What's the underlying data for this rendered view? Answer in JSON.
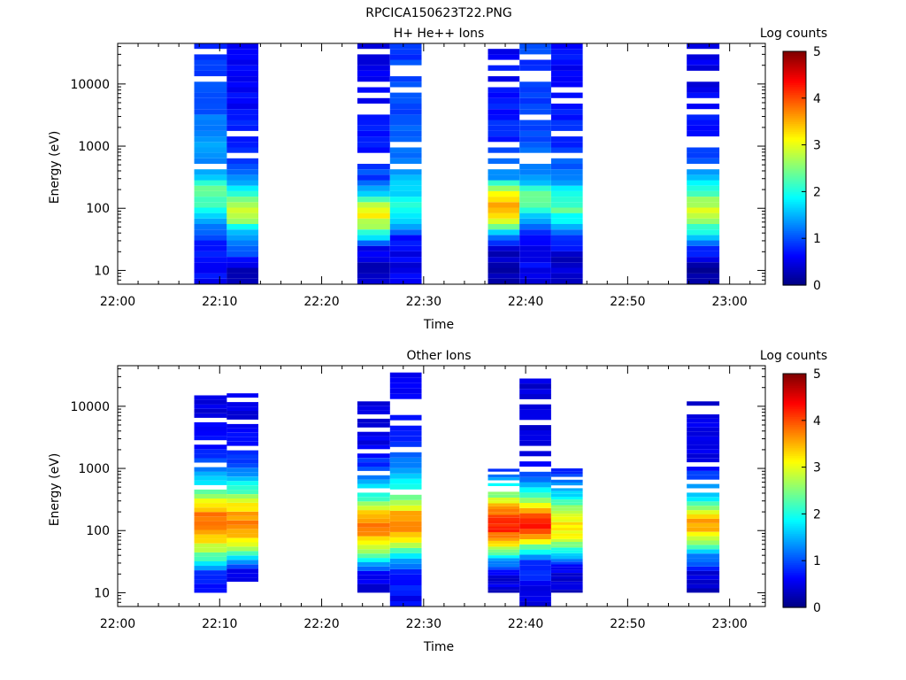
{
  "title": "RPCICA150623T22.PNG",
  "chart_data": [
    {
      "type": "heatmap",
      "title": "H+ He++ Ions",
      "xlabel": "Time",
      "ylabel": "Energy (eV)",
      "y_scale": "log",
      "ylim": [
        6,
        45000
      ],
      "x_ticks": [
        "22:00",
        "22:10",
        "22:20",
        "22:30",
        "22:40",
        "22:50",
        "23:00"
      ],
      "y_ticks": [
        "10",
        "100",
        "1000",
        "10000"
      ],
      "colorbar": {
        "label": "Log counts",
        "ticks": [
          "0",
          "1",
          "2",
          "3",
          "4",
          "5"
        ],
        "range": [
          0,
          5
        ]
      },
      "columns": [
        {
          "start": "22:07.5",
          "end": "22:10.7",
          "profile": [
            [
              6,
              0.6
            ],
            [
              10,
              0.6
            ],
            [
              18,
              0.9
            ],
            [
              25,
              0.8
            ],
            [
              40,
              1.2
            ],
            [
              60,
              1.5
            ],
            [
              100,
              2.0
            ],
            [
              150,
              2.3
            ],
            [
              200,
              2.5
            ],
            [
              300,
              1.8
            ],
            [
              500,
              1.3
            ],
            [
              1000,
              1.4
            ],
            [
              3000,
              1.1
            ],
            [
              10000,
              0.9
            ],
            [
              45000,
              0.8
            ]
          ]
        },
        {
          "start": "22:10.7",
          "end": "22:13.8",
          "profile": [
            [
              6,
              0.3
            ],
            [
              10,
              0.3
            ],
            [
              15,
              0.8
            ],
            [
              25,
              1.0
            ],
            [
              50,
              2.0
            ],
            [
              70,
              3.0
            ],
            [
              100,
              2.7
            ],
            [
              150,
              2.4
            ],
            [
              250,
              1.6
            ],
            [
              500,
              1.0
            ],
            [
              1000,
              0.8
            ],
            [
              10000,
              0.5
            ],
            [
              45000,
              0.5
            ]
          ]
        },
        {
          "start": "22:23.5",
          "end": "22:26.7",
          "profile": [
            [
              6,
              0.4
            ],
            [
              15,
              0.4
            ],
            [
              25,
              0.5
            ],
            [
              30,
              1.5
            ],
            [
              50,
              2.6
            ],
            [
              80,
              3.3
            ],
            [
              100,
              3.0
            ],
            [
              150,
              2.0
            ],
            [
              300,
              1.0
            ],
            [
              1000,
              0.7
            ],
            [
              10000,
              0.5
            ],
            [
              45000,
              0.5
            ]
          ]
        },
        {
          "start": "22:26.7",
          "end": "22:29.8",
          "profile": [
            [
              6,
              0.5
            ],
            [
              30,
              0.6
            ],
            [
              50,
              1.3
            ],
            [
              80,
              1.9
            ],
            [
              120,
              2.1
            ],
            [
              200,
              1.7
            ],
            [
              500,
              1.2
            ],
            [
              1000,
              1.1
            ],
            [
              10000,
              0.9
            ],
            [
              45000,
              0.9
            ]
          ]
        },
        {
          "start": "22:36.3",
          "end": "22:39.4",
          "profile": [
            [
              6,
              0.3
            ],
            [
              15,
              0.3
            ],
            [
              25,
              0.5
            ],
            [
              40,
              1.5
            ],
            [
              60,
              2.8
            ],
            [
              80,
              3.4
            ],
            [
              120,
              3.5
            ],
            [
              200,
              2.7
            ],
            [
              300,
              1.5
            ],
            [
              1000,
              0.8
            ],
            [
              10000,
              0.6
            ],
            [
              45000,
              0.6
            ]
          ]
        },
        {
          "start": "22:39.4",
          "end": "22:42.5",
          "profile": [
            [
              6,
              0.5
            ],
            [
              30,
              0.6
            ],
            [
              60,
              1.3
            ],
            [
              100,
              2.2
            ],
            [
              150,
              2.5
            ],
            [
              250,
              1.7
            ],
            [
              500,
              1.2
            ],
            [
              1000,
              1.0
            ],
            [
              10000,
              0.9
            ],
            [
              45000,
              0.9
            ]
          ]
        },
        {
          "start": "22:42.5",
          "end": "22:45.6",
          "profile": [
            [
              6,
              0.3
            ],
            [
              15,
              0.4
            ],
            [
              30,
              0.7
            ],
            [
              60,
              1.7
            ],
            [
              100,
              2.4
            ],
            [
              150,
              2.0
            ],
            [
              300,
              1.3
            ],
            [
              1000,
              0.8
            ],
            [
              10000,
              0.6
            ],
            [
              45000,
              0.6
            ]
          ]
        },
        {
          "start": "22:55.8",
          "end": "22:59.0",
          "profile": [
            [
              6,
              0.2
            ],
            [
              10,
              0.2
            ],
            [
              25,
              1.0
            ],
            [
              50,
              2.3
            ],
            [
              80,
              2.9
            ],
            [
              100,
              3.0
            ],
            [
              150,
              2.5
            ],
            [
              300,
              1.5
            ],
            [
              1000,
              0.8
            ],
            [
              10000,
              0.5
            ],
            [
              45000,
              0.5
            ]
          ]
        }
      ]
    },
    {
      "type": "heatmap",
      "title": "Other Ions",
      "xlabel": "Time",
      "ylabel": "Energy (eV)",
      "y_scale": "log",
      "ylim": [
        6,
        45000
      ],
      "x_ticks": [
        "22:00",
        "22:10",
        "22:20",
        "22:30",
        "22:40",
        "22:50",
        "23:00"
      ],
      "y_ticks": [
        "10",
        "100",
        "1000",
        "10000"
      ],
      "colorbar": {
        "label": "Log counts",
        "ticks": [
          "0",
          "1",
          "2",
          "3",
          "4",
          "5"
        ],
        "range": [
          0,
          5
        ]
      },
      "columns": [
        {
          "start": "22:07.5",
          "end": "22:10.7",
          "profile": [
            [
              10,
              0.6
            ],
            [
              20,
              0.8
            ],
            [
              30,
              1.8
            ],
            [
              50,
              2.8
            ],
            [
              100,
              3.6
            ],
            [
              150,
              3.9
            ],
            [
              250,
              3.4
            ],
            [
              500,
              2.0
            ],
            [
              1000,
              1.2
            ],
            [
              2500,
              0.6
            ],
            [
              15000,
              0.4
            ]
          ]
        },
        {
          "start": "22:10.7",
          "end": "22:13.8",
          "profile": [
            [
              15,
              0.5
            ],
            [
              25,
              0.7
            ],
            [
              40,
              2.0
            ],
            [
              70,
              3.3
            ],
            [
              120,
              3.7
            ],
            [
              200,
              3.5
            ],
            [
              400,
              2.3
            ],
            [
              1000,
              1.1
            ],
            [
              2500,
              0.6
            ],
            [
              19000,
              0.4
            ]
          ]
        },
        {
          "start": "22:23.5",
          "end": "22:26.7",
          "profile": [
            [
              10,
              0.5
            ],
            [
              20,
              0.5
            ],
            [
              30,
              1.6
            ],
            [
              60,
              3.2
            ],
            [
              100,
              3.8
            ],
            [
              180,
              3.6
            ],
            [
              300,
              2.4
            ],
            [
              800,
              1.0
            ],
            [
              2500,
              0.5
            ],
            [
              12000,
              0.4
            ]
          ]
        },
        {
          "start": "22:26.7",
          "end": "22:29.8",
          "profile": [
            [
              6,
              0.6
            ],
            [
              20,
              0.7
            ],
            [
              40,
              1.8
            ],
            [
              80,
              3.4
            ],
            [
              120,
              3.9
            ],
            [
              200,
              3.4
            ],
            [
              400,
              2.2
            ],
            [
              1000,
              1.3
            ],
            [
              2500,
              0.7
            ],
            [
              35000,
              0.4
            ]
          ]
        },
        {
          "start": "22:36.3",
          "end": "22:39.4",
          "profile": [
            [
              10,
              0.4
            ],
            [
              20,
              0.5
            ],
            [
              35,
              1.6
            ],
            [
              60,
              3.3
            ],
            [
              100,
              4.1
            ],
            [
              150,
              4.2
            ],
            [
              250,
              3.4
            ],
            [
              500,
              1.9
            ],
            [
              1100,
              0.6
            ]
          ]
        },
        {
          "start": "22:39.4",
          "end": "22:42.5",
          "profile": [
            [
              6,
              0.5
            ],
            [
              30,
              0.8
            ],
            [
              50,
              2.2
            ],
            [
              80,
              3.7
            ],
            [
              120,
              4.3
            ],
            [
              180,
              4.0
            ],
            [
              300,
              2.6
            ],
            [
              700,
              1.0
            ],
            [
              1600,
              0.4
            ],
            [
              28000,
              0.4
            ]
          ]
        },
        {
          "start": "22:42.5",
          "end": "22:45.6",
          "profile": [
            [
              10,
              0.4
            ],
            [
              25,
              0.5
            ],
            [
              40,
              1.6
            ],
            [
              70,
              2.9
            ],
            [
              120,
              3.3
            ],
            [
              200,
              2.8
            ],
            [
              400,
              1.6
            ],
            [
              1000,
              0.6
            ]
          ]
        },
        {
          "start": "22:55.8",
          "end": "22:59.0",
          "profile": [
            [
              10,
              0.3
            ],
            [
              20,
              0.4
            ],
            [
              40,
              1.4
            ],
            [
              70,
              2.7
            ],
            [
              110,
              3.6
            ],
            [
              170,
              3.4
            ],
            [
              300,
              2.0
            ],
            [
              700,
              0.9
            ],
            [
              1400,
              0.5
            ],
            [
              12000,
              0.4
            ]
          ]
        }
      ]
    }
  ]
}
